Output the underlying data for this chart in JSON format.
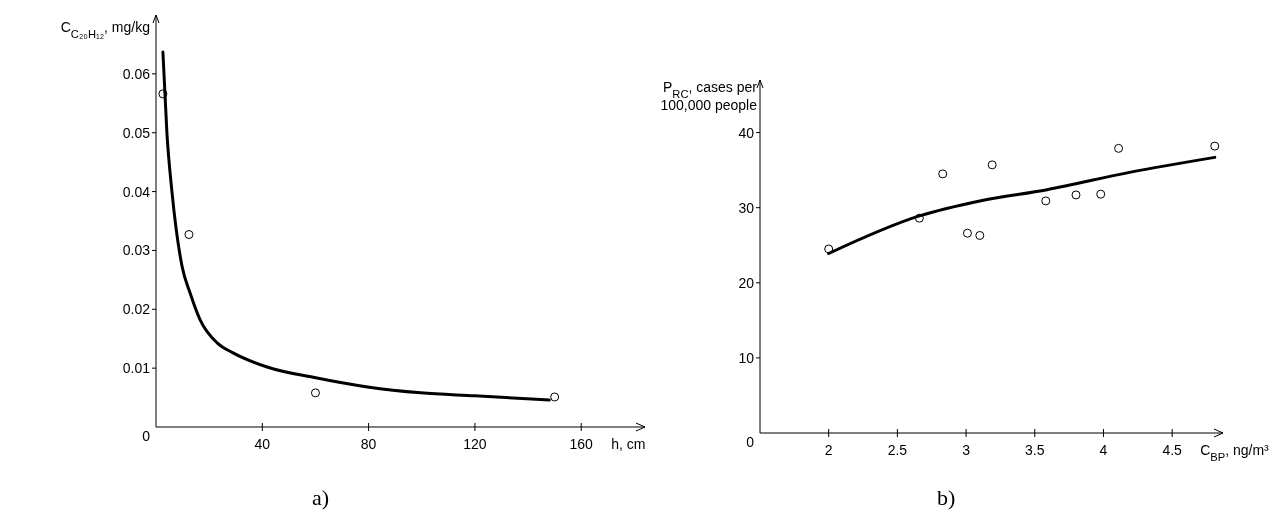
{
  "chart_data": [
    {
      "type": "scatter",
      "xlabel": "h, cm",
      "ylabel": "C$_{C₂₀H₁₂}$, mg/kg",
      "xlim": [
        0,
        184
      ],
      "ylim": [
        0,
        0.07
      ],
      "xticks": [
        40,
        80,
        120,
        160
      ],
      "yticks": [
        0,
        0.01,
        0.02,
        0.03,
        0.04,
        0.05,
        0.06
      ],
      "grid": false,
      "annotations": [
        "a)"
      ],
      "series": [
        {
          "marker": "circle",
          "color": "#000000",
          "x": [
            2.6,
            12.4,
            60,
            150
          ],
          "values": [
            0.0566,
            0.0327,
            0.0058,
            0.0051
          ]
        },
        {
          "type": "line",
          "marker": "none",
          "line_style": "solid",
          "color": "#000000",
          "x": [
            2.6,
            4.1,
            6,
            9.8,
            12.8,
            16.6,
            23,
            29,
            41.8,
            59.6,
            79.6,
            99.6,
            120,
            148
          ],
          "values": [
            0.0637,
            0.05,
            0.04,
            0.0273,
            0.0228,
            0.0182,
            0.0143,
            0.0126,
            0.0102,
            0.0084,
            0.0068,
            0.0058,
            0.0053,
            0.0046
          ]
        }
      ]
    },
    {
      "type": "scatter",
      "xlabel": "C$_{BP}$, ng/m³",
      "ylabel": "P$_{RC}$, cases per 100,000 people",
      "xlim": [
        1.5,
        4.87
      ],
      "ylim": [
        0,
        47
      ],
      "xticks": [
        2,
        2.5,
        3,
        3.5,
        4,
        4.5
      ],
      "yticks": [
        0,
        10,
        20,
        30,
        40
      ],
      "grid": false,
      "annotations": [
        "b)"
      ],
      "series": [
        {
          "marker": "circle",
          "color": "#000000",
          "x": [
            2.0,
            2.66,
            2.83,
            3.01,
            3.1,
            3.19,
            3.58,
            3.8,
            3.98,
            4.11,
            4.81
          ],
          "values": [
            24.5,
            28.6,
            34.5,
            26.6,
            26.3,
            35.7,
            30.9,
            31.7,
            31.8,
            37.9,
            38.2
          ]
        },
        {
          "type": "line",
          "marker": "none",
          "line_style": "solid",
          "color": "#000000",
          "x": [
            2.0,
            2.66,
            3.1,
            3.59,
            4.19,
            4.81
          ],
          "values": [
            23.9,
            28.9,
            30.9,
            32.4,
            34.7,
            36.7
          ]
        }
      ]
    }
  ]
}
